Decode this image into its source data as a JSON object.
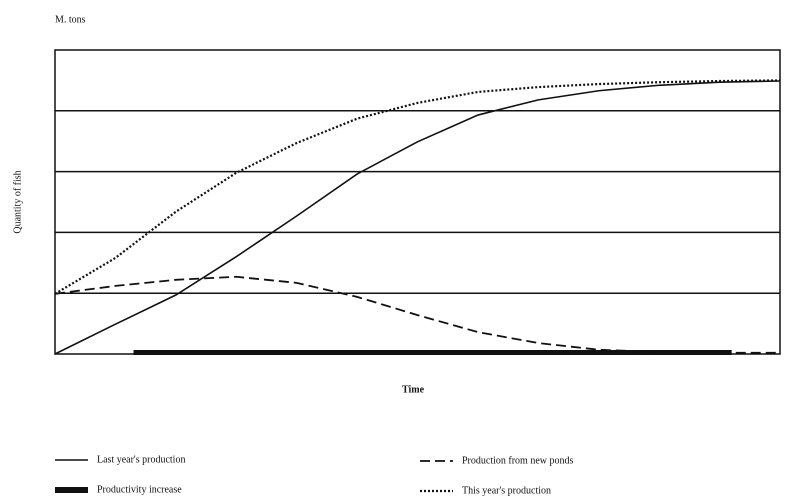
{
  "chart_data": {
    "type": "line",
    "y_unit": "M. tons",
    "ylabel": "Quantity of fish",
    "xlabel": "Time",
    "x": [
      0,
      1,
      2,
      3,
      4,
      5,
      6,
      7,
      8,
      9,
      10,
      11,
      12
    ],
    "xlim": [
      0,
      12
    ],
    "ylim": [
      0,
      5
    ],
    "yticks": [
      1,
      2,
      3,
      4
    ],
    "grid": true,
    "series": [
      {
        "name": "Last year's production",
        "color": "#111111",
        "style": "solid",
        "values": [
          0,
          0.49,
          0.97,
          1.6,
          2.27,
          2.96,
          3.49,
          3.93,
          4.18,
          4.33,
          4.42,
          4.47,
          4.49
        ]
      },
      {
        "name": "Production from new ponds",
        "color": "#111111",
        "style": "dashed",
        "values": [
          0.99,
          1.12,
          1.22,
          1.27,
          1.17,
          0.94,
          0.64,
          0.36,
          0.18,
          0.07,
          0.03,
          0.02,
          0.02
        ]
      },
      {
        "name": "This year's production",
        "color": "#111111",
        "style": "dotted",
        "values": [
          0.99,
          1.58,
          2.34,
          2.98,
          3.47,
          3.87,
          4.13,
          4.31,
          4.39,
          4.44,
          4.47,
          4.49,
          4.5
        ]
      }
    ],
    "band": {
      "name": "Productivity increase",
      "color": "#111111",
      "start": 1.3,
      "end": 11.2
    }
  }
}
